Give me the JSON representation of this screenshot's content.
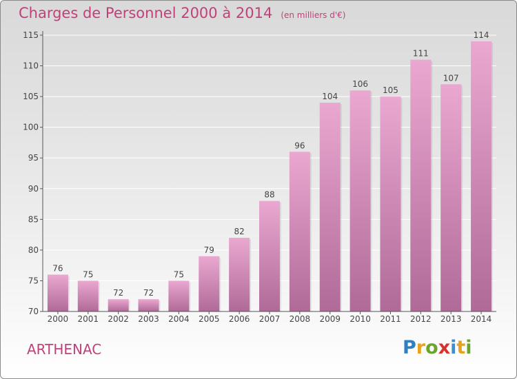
{
  "header": {
    "title": "Charges de Personnel 2000 à 2014",
    "subtitle": "(en milliers d'€)"
  },
  "footer": {
    "commune": "ARTHENAC",
    "logo_letters": [
      "P",
      "r",
      "o",
      "x",
      "i",
      "t",
      "i"
    ],
    "logo_colors": [
      "#2f7fc1",
      "#e8a21b",
      "#6aa52c",
      "#d9312c",
      "#3c8fd0",
      "#e8a21b",
      "#6aa52c"
    ]
  },
  "colors": {
    "title": "#c2407a",
    "bar_top": "#eaa8d0",
    "bar_bottom": "#b06a98",
    "axis": "#555555",
    "grid": "#ffffff"
  },
  "chart_data": {
    "type": "bar",
    "categories": [
      "2000",
      "2001",
      "2002",
      "2003",
      "2004",
      "2005",
      "2006",
      "2007",
      "2008",
      "2009",
      "2010",
      "2011",
      "2012",
      "2013",
      "2014"
    ],
    "values": [
      76,
      75,
      72,
      72,
      75,
      79,
      82,
      88,
      96,
      104,
      106,
      105,
      111,
      107,
      114
    ],
    "yticks": [
      70,
      75,
      80,
      85,
      90,
      95,
      100,
      105,
      110,
      115
    ],
    "ylim": [
      70,
      115
    ],
    "grid": true,
    "title": "Charges de Personnel 2000 à 2014",
    "xlabel": "",
    "ylabel": ""
  }
}
